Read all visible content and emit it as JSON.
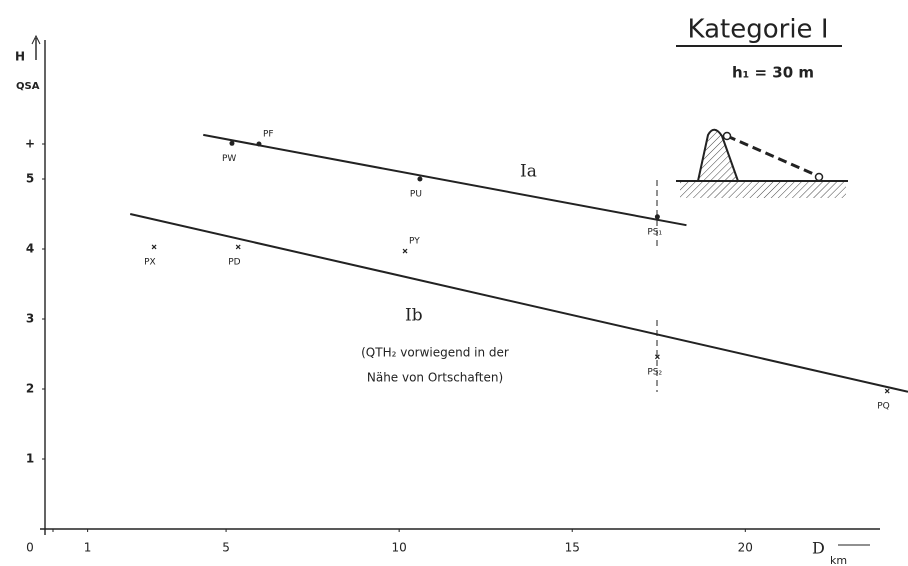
{
  "chart_data": {
    "type": "line",
    "title": "Kategorie I",
    "subtitle": "h₁ = 30 m",
    "y_label": "H",
    "y_unit": "QSA",
    "x_label": "D",
    "x_unit": "km",
    "xlim": [
      0,
      24.7
    ],
    "ylim": [
      0,
      7
    ],
    "xticks": [
      0,
      1,
      5,
      10,
      15,
      20
    ],
    "yticks": [
      1,
      2,
      3,
      4,
      5,
      {
        "value": 5.5,
        "label": "+"
      }
    ],
    "series": [
      {
        "name": "Ia",
        "color": "#222",
        "x": [
          4.34,
          18.3
        ],
        "values": [
          5.63,
          4.34
        ]
      },
      {
        "name": "Ib",
        "color": "#222",
        "x": [
          2.23,
          24.7
        ],
        "values": [
          4.5,
          1.96
        ]
      }
    ],
    "points": {
      "labels": [
        "PW",
        "PF",
        "PU",
        "PS₁",
        "PX",
        "PD",
        "PY",
        "PS₂",
        "PQ"
      ],
      "x": [
        5.17,
        5.95,
        10.6,
        17.46,
        2.92,
        5.35,
        10.17,
        17.46,
        24.1
      ],
      "y": [
        5.51,
        5.5,
        5.0,
        4.46,
        4.03,
        4.03,
        3.97,
        2.46,
        1.97
      ],
      "markers": [
        "dot",
        "dot",
        "dot",
        "dot",
        "cross",
        "cross",
        "cross",
        "cross",
        "cross"
      ]
    },
    "annotations": [
      "(QTH₂ vorwiegend in der",
      "Nähe von Ortschaften)"
    ]
  }
}
